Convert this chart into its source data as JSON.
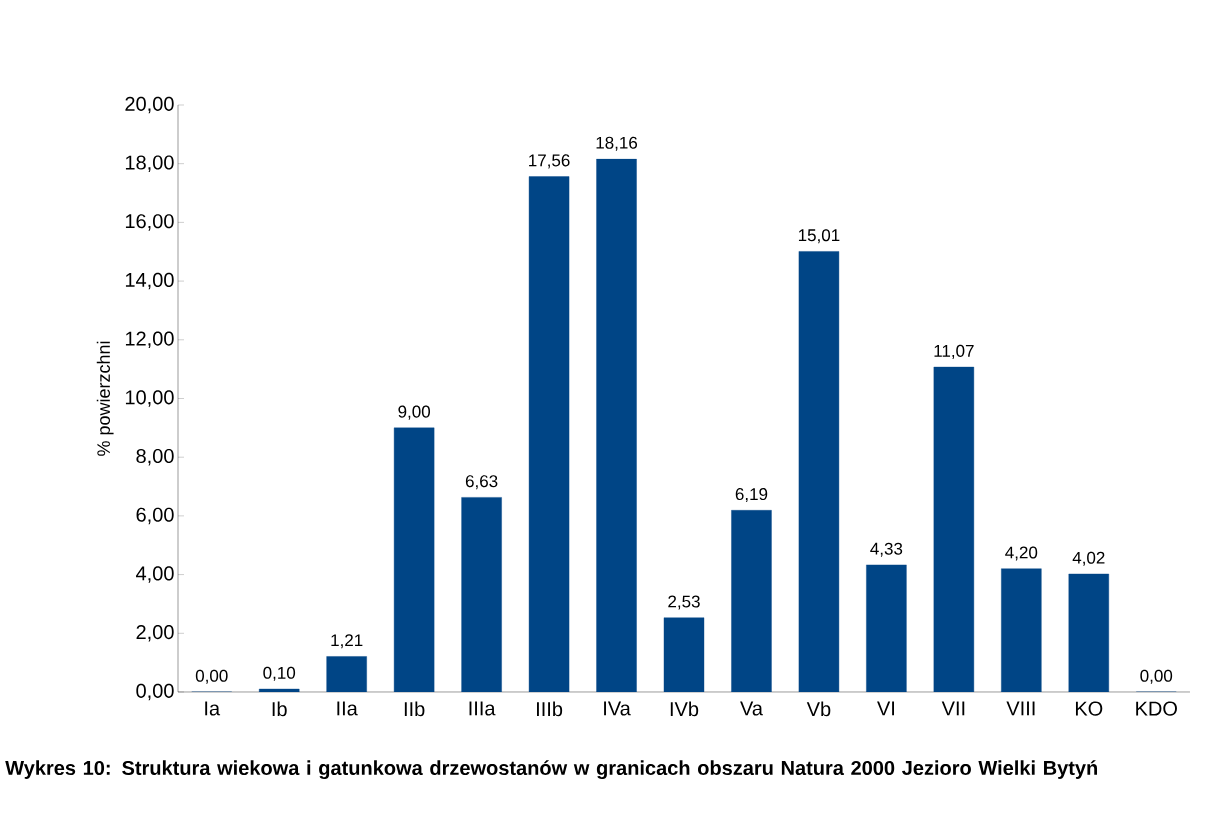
{
  "chart_data": {
    "type": "bar",
    "title": "Wykres 10: Struktura wiekowa i gatunkowa drzewostanów w granicach obszaru Natura 2000 Jezioro Wielki Bytyń",
    "ylabel": "% powierzchni",
    "categories": [
      "Ia",
      "Ib",
      "IIa",
      "IIb",
      "IIIa",
      "IIIb",
      "IVa",
      "IVb",
      "Va",
      "Vb",
      "VI",
      "VII",
      "VIII",
      "KO",
      "KDO"
    ],
    "values": [
      0.0,
      0.1,
      1.21,
      9.0,
      6.63,
      17.56,
      18.16,
      2.53,
      6.19,
      15.01,
      4.33,
      11.07,
      4.2,
      4.02,
      0.0
    ],
    "value_labels": [
      "0,00",
      "0,10",
      "1,21",
      "9,00",
      "6,63",
      "17,56",
      "18,16",
      "2,53",
      "6,19",
      "15,01",
      "4,33",
      "11,07",
      "4,20",
      "4,02",
      "0,00"
    ],
    "color": "#004586",
    "ylim": [
      0,
      20
    ],
    "yticks": [
      {
        "value": 0,
        "label": "0,00"
      },
      {
        "value": 2,
        "label": "2,00"
      },
      {
        "value": 4,
        "label": "4,00"
      },
      {
        "value": 6,
        "label": "6,00"
      },
      {
        "value": 8,
        "label": "8,00"
      },
      {
        "value": 10,
        "label": "10,00"
      },
      {
        "value": 12,
        "label": "12,00"
      },
      {
        "value": 14,
        "label": "14,00"
      },
      {
        "value": 16,
        "label": "16,00"
      },
      {
        "value": 18,
        "label": "18,00"
      },
      {
        "value": 20,
        "label": "20,00"
      }
    ],
    "grid": false
  }
}
